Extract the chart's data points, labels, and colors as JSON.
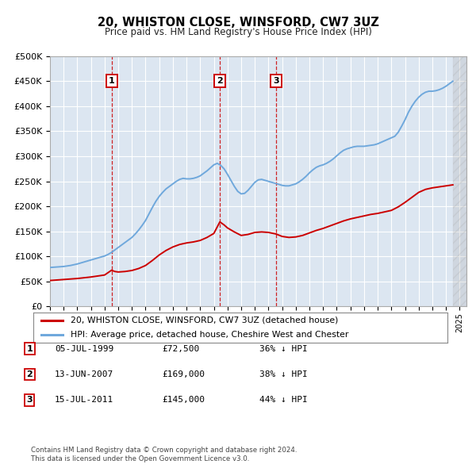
{
  "title": "20, WHISTON CLOSE, WINSFORD, CW7 3UZ",
  "subtitle": "Price paid vs. HM Land Registry's House Price Index (HPI)",
  "hpi_label": "HPI: Average price, detached house, Cheshire West and Chester",
  "property_label": "20, WHISTON CLOSE, WINSFORD, CW7 3UZ (detached house)",
  "footnote1": "Contains HM Land Registry data © Crown copyright and database right 2024.",
  "footnote2": "This data is licensed under the Open Government Licence v3.0.",
  "sales": [
    {
      "num": 1,
      "date": "05-JUL-1999",
      "price": 72500,
      "pct": "36% ↓ HPI",
      "x": 1999.51
    },
    {
      "num": 2,
      "date": "13-JUN-2007",
      "price": 169000,
      "pct": "38% ↓ HPI",
      "x": 2007.44
    },
    {
      "num": 3,
      "date": "15-JUL-2011",
      "price": 145000,
      "pct": "44% ↓ HPI",
      "x": 2011.54
    }
  ],
  "hpi_color": "#6fa8dc",
  "price_color": "#cc0000",
  "vline_color": "#cc0000",
  "plot_bg": "#dce6f1",
  "grid_color": "#ffffff",
  "ylim": [
    0,
    500000
  ],
  "xlim_start": 1995.0,
  "xlim_end": 2025.5,
  "yticks": [
    0,
    50000,
    100000,
    150000,
    200000,
    250000,
    300000,
    350000,
    400000,
    450000,
    500000
  ],
  "ytick_labels": [
    "£0",
    "£50K",
    "£100K",
    "£150K",
    "£200K",
    "£250K",
    "£300K",
    "£350K",
    "£400K",
    "£450K",
    "£500K"
  ],
  "xticks": [
    1995,
    1996,
    1997,
    1998,
    1999,
    2000,
    2001,
    2002,
    2003,
    2004,
    2005,
    2006,
    2007,
    2008,
    2009,
    2010,
    2011,
    2012,
    2013,
    2014,
    2015,
    2016,
    2017,
    2018,
    2019,
    2020,
    2021,
    2022,
    2023,
    2024,
    2025
  ],
  "hpi_data": [
    [
      1995.0,
      78000
    ],
    [
      1995.25,
      78500
    ],
    [
      1995.5,
      79000
    ],
    [
      1995.75,
      79500
    ],
    [
      1996.0,
      80000
    ],
    [
      1996.25,
      81000
    ],
    [
      1996.5,
      82000
    ],
    [
      1996.75,
      83500
    ],
    [
      1997.0,
      85000
    ],
    [
      1997.25,
      87000
    ],
    [
      1997.5,
      89000
    ],
    [
      1997.75,
      91000
    ],
    [
      1998.0,
      93000
    ],
    [
      1998.25,
      95000
    ],
    [
      1998.5,
      97000
    ],
    [
      1998.75,
      99000
    ],
    [
      1999.0,
      101000
    ],
    [
      1999.25,
      104000
    ],
    [
      1999.5,
      108000
    ],
    [
      1999.75,
      113000
    ],
    [
      2000.0,
      118000
    ],
    [
      2000.25,
      123000
    ],
    [
      2000.5,
      128000
    ],
    [
      2000.75,
      133000
    ],
    [
      2001.0,
      138000
    ],
    [
      2001.25,
      145000
    ],
    [
      2001.5,
      153000
    ],
    [
      2001.75,
      162000
    ],
    [
      2002.0,
      172000
    ],
    [
      2002.25,
      185000
    ],
    [
      2002.5,
      198000
    ],
    [
      2002.75,
      210000
    ],
    [
      2003.0,
      220000
    ],
    [
      2003.25,
      228000
    ],
    [
      2003.5,
      235000
    ],
    [
      2003.75,
      240000
    ],
    [
      2004.0,
      245000
    ],
    [
      2004.25,
      250000
    ],
    [
      2004.5,
      254000
    ],
    [
      2004.75,
      256000
    ],
    [
      2005.0,
      255000
    ],
    [
      2005.25,
      255000
    ],
    [
      2005.5,
      256000
    ],
    [
      2005.75,
      258000
    ],
    [
      2006.0,
      261000
    ],
    [
      2006.25,
      266000
    ],
    [
      2006.5,
      271000
    ],
    [
      2006.75,
      277000
    ],
    [
      2007.0,
      283000
    ],
    [
      2007.25,
      286000
    ],
    [
      2007.5,
      282000
    ],
    [
      2007.75,
      275000
    ],
    [
      2008.0,
      264000
    ],
    [
      2008.25,
      252000
    ],
    [
      2008.5,
      240000
    ],
    [
      2008.75,
      230000
    ],
    [
      2009.0,
      225000
    ],
    [
      2009.25,
      226000
    ],
    [
      2009.5,
      232000
    ],
    [
      2009.75,
      240000
    ],
    [
      2010.0,
      248000
    ],
    [
      2010.25,
      253000
    ],
    [
      2010.5,
      254000
    ],
    [
      2010.75,
      252000
    ],
    [
      2011.0,
      250000
    ],
    [
      2011.25,
      248000
    ],
    [
      2011.5,
      246000
    ],
    [
      2011.75,
      244000
    ],
    [
      2012.0,
      242000
    ],
    [
      2012.25,
      241000
    ],
    [
      2012.5,
      241000
    ],
    [
      2012.75,
      243000
    ],
    [
      2013.0,
      245000
    ],
    [
      2013.25,
      249000
    ],
    [
      2013.5,
      254000
    ],
    [
      2013.75,
      260000
    ],
    [
      2014.0,
      267000
    ],
    [
      2014.25,
      273000
    ],
    [
      2014.5,
      278000
    ],
    [
      2014.75,
      281000
    ],
    [
      2015.0,
      283000
    ],
    [
      2015.25,
      286000
    ],
    [
      2015.5,
      290000
    ],
    [
      2015.75,
      295000
    ],
    [
      2016.0,
      301000
    ],
    [
      2016.25,
      307000
    ],
    [
      2016.5,
      312000
    ],
    [
      2016.75,
      315000
    ],
    [
      2017.0,
      317000
    ],
    [
      2017.25,
      319000
    ],
    [
      2017.5,
      320000
    ],
    [
      2017.75,
      320000
    ],
    [
      2018.0,
      320000
    ],
    [
      2018.25,
      321000
    ],
    [
      2018.5,
      322000
    ],
    [
      2018.75,
      323000
    ],
    [
      2019.0,
      325000
    ],
    [
      2019.25,
      328000
    ],
    [
      2019.5,
      331000
    ],
    [
      2019.75,
      334000
    ],
    [
      2020.0,
      337000
    ],
    [
      2020.25,
      340000
    ],
    [
      2020.5,
      348000
    ],
    [
      2020.75,
      360000
    ],
    [
      2021.0,
      373000
    ],
    [
      2021.25,
      388000
    ],
    [
      2021.5,
      400000
    ],
    [
      2021.75,
      410000
    ],
    [
      2022.0,
      418000
    ],
    [
      2022.25,
      424000
    ],
    [
      2022.5,
      428000
    ],
    [
      2022.75,
      430000
    ],
    [
      2023.0,
      430000
    ],
    [
      2023.25,
      431000
    ],
    [
      2023.5,
      433000
    ],
    [
      2023.75,
      436000
    ],
    [
      2024.0,
      440000
    ],
    [
      2024.25,
      445000
    ],
    [
      2024.5,
      450000
    ]
  ],
  "price_data": [
    [
      1995.0,
      52000
    ],
    [
      1995.5,
      53000
    ],
    [
      1996.0,
      54000
    ],
    [
      1996.5,
      55000
    ],
    [
      1997.0,
      56000
    ],
    [
      1997.5,
      57500
    ],
    [
      1998.0,
      59000
    ],
    [
      1998.5,
      61000
    ],
    [
      1999.0,
      63000
    ],
    [
      1999.51,
      72500
    ],
    [
      1999.75,
      70000
    ],
    [
      2000.0,
      69000
    ],
    [
      2000.5,
      70000
    ],
    [
      2001.0,
      72000
    ],
    [
      2001.5,
      76000
    ],
    [
      2002.0,
      82000
    ],
    [
      2002.5,
      92000
    ],
    [
      2003.0,
      103000
    ],
    [
      2003.5,
      112000
    ],
    [
      2004.0,
      119000
    ],
    [
      2004.5,
      124000
    ],
    [
      2005.0,
      127000
    ],
    [
      2005.5,
      129000
    ],
    [
      2006.0,
      132000
    ],
    [
      2006.5,
      138000
    ],
    [
      2007.0,
      146000
    ],
    [
      2007.44,
      169000
    ],
    [
      2007.75,
      163000
    ],
    [
      2008.0,
      157000
    ],
    [
      2008.5,
      149000
    ],
    [
      2009.0,
      142000
    ],
    [
      2009.5,
      144000
    ],
    [
      2010.0,
      148000
    ],
    [
      2010.5,
      149000
    ],
    [
      2011.0,
      148000
    ],
    [
      2011.54,
      145000
    ],
    [
      2012.0,
      140000
    ],
    [
      2012.5,
      138000
    ],
    [
      2013.0,
      139000
    ],
    [
      2013.5,
      142000
    ],
    [
      2014.0,
      147000
    ],
    [
      2014.5,
      152000
    ],
    [
      2015.0,
      156000
    ],
    [
      2015.5,
      161000
    ],
    [
      2016.0,
      166000
    ],
    [
      2016.5,
      171000
    ],
    [
      2017.0,
      175000
    ],
    [
      2017.5,
      178000
    ],
    [
      2018.0,
      181000
    ],
    [
      2018.5,
      184000
    ],
    [
      2019.0,
      186000
    ],
    [
      2019.5,
      189000
    ],
    [
      2020.0,
      192000
    ],
    [
      2020.5,
      199000
    ],
    [
      2021.0,
      208000
    ],
    [
      2021.5,
      218000
    ],
    [
      2022.0,
      228000
    ],
    [
      2022.5,
      234000
    ],
    [
      2023.0,
      237000
    ],
    [
      2023.5,
      239000
    ],
    [
      2024.0,
      241000
    ],
    [
      2024.5,
      243000
    ]
  ]
}
